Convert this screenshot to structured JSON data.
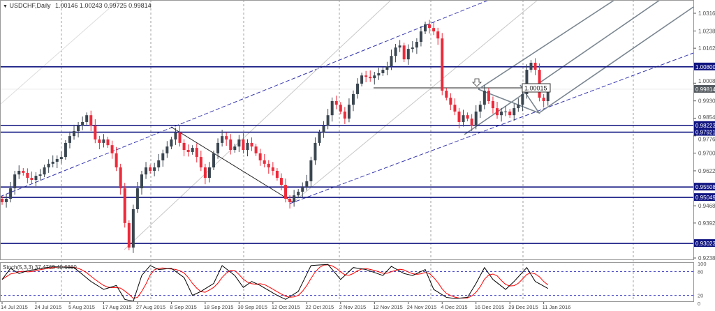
{
  "header": {
    "symbol": "USDCHF,Daily",
    "ohlc": "1.00146 1.00243 0.99725 0.99814",
    "menu_icon": "triangle-down-icon"
  },
  "chart_data": {
    "type": "candlestick",
    "title": "USDCHF,Daily",
    "ylim": [
      0.9238,
      1.0316
    ],
    "y_ticks": [
      "1.03160",
      "1.02380",
      "1.01620",
      "1.00080",
      "0.99300",
      "0.98540",
      "0.97760",
      "0.97000",
      "0.96220",
      "0.94680",
      "0.93920",
      "0.92380"
    ],
    "current_price": "0.99814",
    "levels": [
      "1.00800",
      "0.98223",
      "0.97921",
      "0.95508",
      "0.95049",
      "0.93023"
    ],
    "annotation": "1.00015",
    "x_ticks": [
      "14 Jul 2015",
      "24 Jul 2015",
      "5 Aug 2015",
      "17 Aug 2015",
      "27 Aug 2015",
      "8 Sep 2015",
      "18 Sep 2015",
      "30 Sep 2015",
      "12 Oct 2015",
      "22 Oct 2015",
      "2 Nov 2015",
      "12 Nov 2015",
      "24 Nov 2015",
      "4 Dec 2015",
      "16 Dec 2015",
      "29 Dec 2015",
      "11 Jan 2016"
    ],
    "close": [
      0.9484,
      0.9499,
      0.9545,
      0.9606,
      0.9622,
      0.9613,
      0.9591,
      0.9582,
      0.96,
      0.9606,
      0.9637,
      0.9653,
      0.9662,
      0.9674,
      0.9683,
      0.9745,
      0.9775,
      0.9797,
      0.9821,
      0.9837,
      0.9867,
      0.9821,
      0.976,
      0.9745,
      0.976,
      0.9735,
      0.9699,
      0.9637,
      0.9545,
      0.9392,
      0.9284,
      0.9453,
      0.9545,
      0.9606,
      0.9637,
      0.9622,
      0.9637,
      0.9668,
      0.9699,
      0.9729,
      0.976,
      0.9791,
      0.9745,
      0.9714,
      0.9705,
      0.9723,
      0.9683,
      0.9637,
      0.9591,
      0.9637,
      0.9699,
      0.9745,
      0.9775,
      0.976,
      0.9714,
      0.9729,
      0.976,
      0.9714,
      0.9745,
      0.9729,
      0.9699,
      0.9668,
      0.9653,
      0.9637,
      0.9622,
      0.9591,
      0.956,
      0.9499,
      0.9484,
      0.9514,
      0.953,
      0.9551,
      0.9576,
      0.9668,
      0.9745,
      0.9791,
      0.9821,
      0.9867,
      0.9929,
      0.9913,
      0.9883,
      0.9852,
      0.9913,
      0.996,
      1.0006,
      1.0042,
      1.0036,
      1.003,
      1.0042,
      1.0052,
      1.0067,
      1.0082,
      1.0128,
      1.0165,
      1.0174,
      1.0113,
      1.0159,
      1.0165,
      1.019,
      1.0236,
      1.0267,
      1.0251,
      1.0236,
      1.0205,
      0.9975,
      0.9944,
      0.9913,
      0.9883,
      0.9837,
      0.9867,
      0.9852,
      0.9821,
      0.9883,
      0.9913,
      0.9975,
      0.9929,
      0.9898,
      0.9867,
      0.9883,
      0.9883,
      0.9867,
      0.9898,
      0.9913,
      0.996,
      1.0067,
      1.0098,
      1.0067,
      0.9944,
      0.9929,
      0.9981
    ],
    "colors": {
      "bull": "#3a4650",
      "bear": "#ee2a3a",
      "levels": "#101580",
      "channel": "#3535b0",
      "pitchfork": "#7a8690",
      "stoch_main": "#000000",
      "stoch_signal": "#ff0000"
    },
    "indicator": {
      "label": "Stoch(5,3,3) 37.4763 40.6860",
      "levels": [
        "100",
        "80",
        "20",
        "0"
      ],
      "k_points": [
        [
          0,
          60
        ],
        [
          2,
          88
        ],
        [
          4,
          75
        ],
        [
          6,
          82
        ],
        [
          8,
          85
        ],
        [
          9,
          88
        ],
        [
          12,
          92
        ],
        [
          17,
          90
        ],
        [
          21,
          55
        ],
        [
          24,
          35
        ],
        [
          27,
          45
        ],
        [
          29,
          10
        ],
        [
          31,
          5
        ],
        [
          33,
          70
        ],
        [
          35,
          95
        ],
        [
          37,
          85
        ],
        [
          40,
          88
        ],
        [
          43,
          65
        ],
        [
          45,
          20
        ],
        [
          47,
          30
        ],
        [
          50,
          50
        ],
        [
          52,
          95
        ],
        [
          55,
          70
        ],
        [
          57,
          40
        ],
        [
          59,
          55
        ],
        [
          61,
          45
        ],
        [
          65,
          20
        ],
        [
          67,
          10
        ],
        [
          70,
          30
        ],
        [
          73,
          95
        ],
        [
          77,
          98
        ],
        [
          80,
          60
        ],
        [
          83,
          90
        ],
        [
          86,
          85
        ],
        [
          90,
          70
        ],
        [
          92,
          93
        ],
        [
          95,
          75
        ],
        [
          97,
          70
        ],
        [
          100,
          85
        ],
        [
          102,
          35
        ],
        [
          105,
          15
        ],
        [
          107,
          12
        ],
        [
          110,
          15
        ],
        [
          112,
          50
        ],
        [
          114,
          90
        ],
        [
          116,
          60
        ],
        [
          119,
          35
        ],
        [
          121,
          55
        ],
        [
          124,
          90
        ],
        [
          126,
          55
        ],
        [
          129,
          37.48
        ]
      ]
    }
  }
}
